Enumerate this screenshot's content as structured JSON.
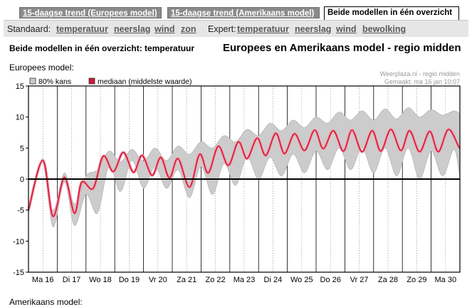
{
  "tabs": [
    {
      "label": "15-daagse trend (Europees model)",
      "active": false
    },
    {
      "label": "15-daagse trend (Amerikaans model)",
      "active": false
    },
    {
      "label": "Beide modellen in één overzicht",
      "active": true
    }
  ],
  "nav": {
    "standard_label": "Standaard:",
    "standard_links": [
      "temperatuur",
      "neerslag",
      "wind",
      "zon"
    ],
    "expert_label": "Expert:",
    "expert_links": [
      "temperatuur",
      "neerslag",
      "wind",
      "bewolking"
    ]
  },
  "page_title": "Beide modellen in één overzicht: temperatuur",
  "region_title": "Europees en Amerikaans model - regio midden",
  "section_label": "Europees model:",
  "section_label_2": "Amerikaans model:",
  "colors": {
    "band": "#cccccc",
    "band_edge": "#aaaaaa",
    "median": "#d01835",
    "median_glow": "#f2a0ae",
    "zero_line": "#000000",
    "grid": "#999999",
    "tab_inactive": "#8a8a8a"
  },
  "chart_data": {
    "type": "line",
    "title": "",
    "source": "Weerplaza.nl - regio midden",
    "made": "Gemaakt: ma 16 jan 10:07",
    "legend": [
      {
        "label": "80% kans",
        "swatch": "band"
      },
      {
        "label": "mediaan (middelste waarde)",
        "swatch": "median"
      }
    ],
    "ylim": [
      -15,
      15
    ],
    "yticks": [
      15,
      10,
      5,
      0,
      -5,
      -10,
      -15
    ],
    "categories": [
      "Ma 16",
      "Di 17",
      "Wo 18",
      "Do 19",
      "Vr 20",
      "Za 21",
      "Zo 22",
      "Ma 23",
      "Di 24",
      "Wo 25",
      "Do 26",
      "Vr 27",
      "Za 28",
      "Zo 29",
      "Ma 30"
    ],
    "x_range": [
      0,
      15
    ],
    "series": [
      {
        "name": "mediaan (middelste waarde)",
        "x": [
          0,
          0.5,
          0.85,
          1.25,
          1.6,
          1.85,
          2.25,
          2.6,
          2.95,
          3.3,
          3.65,
          3.95,
          4.3,
          4.6,
          4.9,
          5.2,
          5.6,
          5.95,
          6.25,
          6.6,
          6.95,
          7.3,
          7.6,
          7.95,
          8.25,
          8.6,
          8.9,
          9.25,
          9.6,
          9.95,
          10.25,
          10.6,
          10.95,
          11.25,
          11.6,
          11.95,
          12.25,
          12.6,
          12.95,
          13.25,
          13.6,
          13.95,
          14.25,
          14.6,
          14.95,
          15
        ],
        "values": [
          -5,
          3,
          -6,
          0.3,
          -5.5,
          -0.5,
          -1.5,
          3.7,
          1.2,
          4.3,
          1.1,
          3.8,
          0.6,
          3.5,
          0.2,
          3.3,
          -1.3,
          4,
          1,
          5.3,
          2.2,
          6,
          3.3,
          6.6,
          3.8,
          7.4,
          4.1,
          7.3,
          4.6,
          7.9,
          4.9,
          7.8,
          4.5,
          7.9,
          4.4,
          7.8,
          4.5,
          8,
          4.6,
          7.8,
          4.4,
          7.7,
          4.4,
          8,
          5.3,
          5
        ]
      },
      {
        "name": "80% kans upper",
        "x": [
          0,
          0.5,
          0.85,
          1.25,
          1.6,
          2,
          2.4,
          2.8,
          3.2,
          3.6,
          4,
          4.4,
          4.8,
          5.2,
          5.6,
          6,
          6.4,
          6.8,
          7.2,
          7.6,
          8,
          8.4,
          8.8,
          9.2,
          9.6,
          10,
          10.4,
          10.8,
          11.2,
          11.6,
          12,
          12.4,
          12.8,
          13.2,
          13.6,
          14,
          14.4,
          14.8,
          15
        ],
        "values": [
          -4.5,
          3.3,
          -5,
          1,
          -4,
          0.5,
          1.5,
          4.5,
          2.8,
          4.8,
          2.9,
          5,
          3,
          5.3,
          4,
          6,
          5,
          7,
          6,
          8,
          7,
          9,
          7.8,
          9.5,
          8.3,
          10,
          9,
          10.8,
          9.5,
          11,
          9.5,
          11.3,
          9.7,
          11.5,
          10,
          11.2,
          10.3,
          11,
          10.5
        ]
      },
      {
        "name": "80% kans lower",
        "x": [
          0,
          0.5,
          0.85,
          1.25,
          1.6,
          2,
          2.4,
          2.8,
          3.2,
          3.6,
          4,
          4.4,
          4.8,
          5.2,
          5.6,
          6,
          6.4,
          6.8,
          7.2,
          7.6,
          8,
          8.4,
          8.8,
          9.2,
          9.6,
          10,
          10.4,
          10.8,
          11.2,
          11.6,
          12,
          12.4,
          12.8,
          13.2,
          13.6,
          14,
          14.4,
          14.8,
          15
        ],
        "values": [
          -5.5,
          2.7,
          -7.7,
          -0.5,
          -7.5,
          -2.5,
          -5.5,
          2,
          -2,
          3,
          -1.5,
          2,
          -1.5,
          1.5,
          -3,
          2,
          -2.5,
          2.5,
          -1,
          3.5,
          0,
          3.5,
          0.5,
          4,
          1,
          4.5,
          1.5,
          5,
          1.5,
          5,
          1,
          5,
          0.5,
          5,
          0,
          4.5,
          0.5,
          4.8,
          0
        ]
      }
    ]
  }
}
